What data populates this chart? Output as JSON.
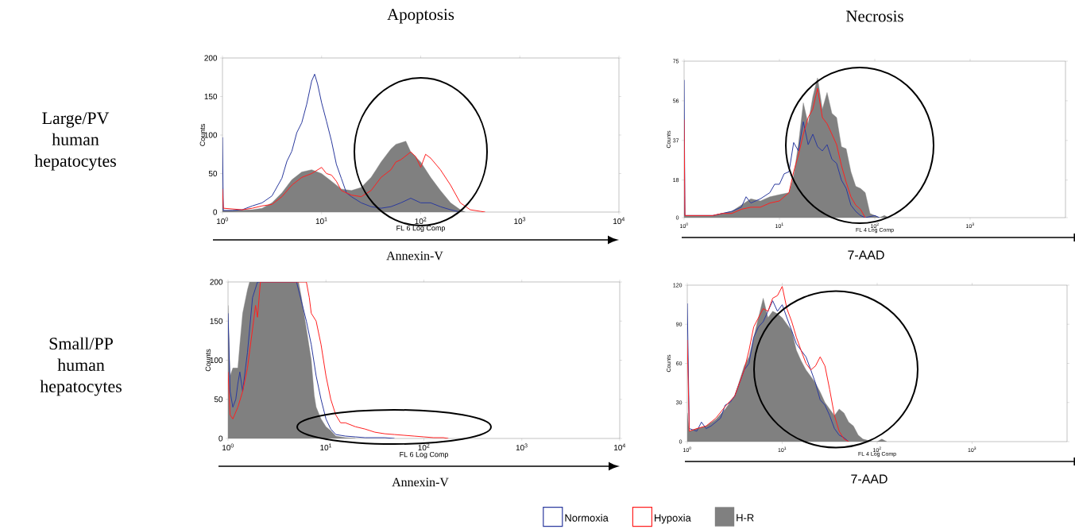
{
  "chart_data": [
    {
      "type": "area",
      "title": "Apoptosis",
      "xlabel": "FL 6 Log Comp",
      "ylabel": "Counts",
      "log": "x",
      "xlim": [
        1,
        10000
      ],
      "ylim": [
        0,
        200
      ],
      "xticks": [
        {
          "value": 1,
          "label": "10$^{0}$"
        },
        {
          "value": 10,
          "label": "10$^{1}$"
        },
        {
          "value": 100,
          "label": "10$^{2}$"
        },
        {
          "value": 1000,
          "label": "10$^{3}$"
        },
        {
          "value": 10000,
          "label": "10$^{4}$"
        }
      ],
      "yticks": [
        0,
        50,
        100,
        150,
        200
      ],
      "annotations": [
        "Large/PV human hepatocytes",
        "Annexin-V"
      ],
      "series": [
        {
          "type": "line",
          "color": "#2b3a9e",
          "x": [
            1,
            1.02,
            1.26,
            1.58,
            2,
            2.51,
            3.16,
            3.98,
            4.47,
            5.01,
            5.62,
            6.31,
            7.08,
            7.94,
            8.51,
            9.12,
            10,
            11.2,
            12.6,
            14.1,
            15.8,
            17.8,
            20,
            25.1,
            31.6,
            39.8,
            50.1,
            63.1,
            79.4,
            100,
            126,
            158,
            200,
            251
          ],
          "values": [
            97,
            2,
            2,
            3,
            8,
            12,
            21,
            44,
            66,
            79,
            103,
            116,
            140,
            170,
            179,
            166,
            142,
            118,
            92,
            62,
            44,
            25,
            20,
            12,
            7,
            5,
            7,
            12,
            18,
            12,
            12,
            7,
            3,
            0
          ]
        },
        {
          "type": "line",
          "color": "#ff2020",
          "x": [
            1,
            1.02,
            1.58,
            2,
            2.51,
            3.16,
            3.98,
            5.01,
            6.31,
            7.94,
            10,
            11.2,
            12.6,
            14.1,
            15.8,
            20,
            25.1,
            31.6,
            39.8,
            50.1,
            56.2,
            63.1,
            79.4,
            89.1,
            100,
            112,
            126,
            158,
            200,
            251,
            316,
            398,
            447
          ],
          "values": [
            30,
            5,
            3,
            5,
            8,
            10,
            20,
            35,
            45,
            50,
            58,
            50,
            48,
            40,
            28,
            22,
            20,
            28,
            45,
            55,
            65,
            68,
            78,
            72,
            58,
            75,
            70,
            55,
            35,
            12,
            3,
            1,
            0
          ]
        },
        {
          "color": "#808080",
          "x": [
            1,
            1.02,
            2,
            2.51,
            3.16,
            3.98,
            5.01,
            6.31,
            7.94,
            10,
            12.6,
            15.8,
            20,
            25.1,
            31.6,
            35.5,
            39.8,
            50.1,
            56.2,
            63.1,
            70.8,
            79.4,
            100,
            126,
            158,
            200,
            251,
            282
          ],
          "values": [
            32,
            2,
            3,
            5,
            12,
            25,
            42,
            52,
            55,
            50,
            40,
            30,
            28,
            32,
            45,
            55,
            65,
            82,
            88,
            90,
            92,
            78,
            65,
            45,
            28,
            12,
            3,
            0
          ]
        }
      ]
    },
    {
      "type": "area",
      "title": "Necrosis",
      "xlabel": "FL 4 Log Comp",
      "ylabel": "Counts",
      "log": "x",
      "xlim": [
        1,
        10000
      ],
      "ylim": [
        0,
        75
      ],
      "xticks": [
        {
          "value": 1,
          "label": "10$^{0}$"
        },
        {
          "value": 10,
          "label": "10$^{1}$"
        },
        {
          "value": 100,
          "label": "10$^{2}$"
        },
        {
          "value": 1000,
          "label": "10$^{3}$"
        }
      ],
      "yticks": [
        0,
        18,
        37,
        56,
        75
      ],
      "annotations": [
        "7-AAD"
      ],
      "series": [
        {
          "type": "line",
          "color": "#2b3a9e",
          "x": [
            1,
            1.02,
            1.26,
            1.58,
            2,
            2.51,
            3.16,
            3.98,
            4.47,
            5.01,
            6.31,
            7.94,
            8.91,
            10,
            11.2,
            12.6,
            14.1,
            15.8,
            17.8,
            20,
            22.4,
            25.1,
            28.2,
            31.6,
            35.5,
            39.8,
            44.7,
            50.1,
            56.2,
            63.1,
            70.8,
            79.4,
            100,
            112
          ],
          "values": [
            66,
            1,
            1,
            1,
            1,
            2,
            3,
            5,
            10,
            7,
            9,
            12,
            16,
            16,
            21,
            22,
            36,
            32,
            46,
            35,
            40,
            34,
            32,
            35,
            28,
            26,
            18,
            14,
            6,
            3,
            1,
            0,
            1,
            0
          ]
        },
        {
          "type": "line",
          "color": "#ff2020",
          "x": [
            1,
            1.02,
            1.26,
            2,
            2.51,
            3.16,
            3.98,
            5.01,
            6.31,
            7.94,
            10,
            12.6,
            14.1,
            15.8,
            17.8,
            20,
            22.4,
            25.1,
            28.2,
            31.6,
            35.5,
            39.8,
            44.7,
            50.1,
            56.2,
            63.1,
            70.8,
            79.4
          ],
          "values": [
            47,
            1,
            1,
            1,
            2,
            2,
            4,
            5,
            5,
            7,
            8,
            12,
            22,
            30,
            40,
            48,
            52,
            62,
            48,
            45,
            40,
            35,
            25,
            17,
            10,
            6,
            4,
            0
          ]
        },
        {
          "color": "#808080",
          "x": [
            1,
            1.02,
            1.26,
            2,
            3.16,
            3.98,
            5.01,
            6.31,
            7.94,
            10,
            12.6,
            14.1,
            15.8,
            17.8,
            20,
            22.4,
            25.1,
            28.2,
            31.6,
            35.5,
            39.8,
            44.7,
            50.1,
            56.2,
            63.1,
            70.8,
            79.4,
            89.1,
            100,
            112,
            126,
            141
          ],
          "values": [
            10,
            1,
            1,
            1,
            3,
            6,
            9,
            8,
            10,
            11,
            12,
            20,
            35,
            55,
            45,
            58,
            67,
            52,
            60,
            50,
            48,
            34,
            33,
            22,
            15,
            14,
            12,
            2,
            1,
            0,
            1,
            0
          ]
        }
      ]
    },
    {
      "type": "area",
      "xlabel": "FL 6 Log Comp",
      "ylabel": "Counts",
      "log": "x",
      "xlim": [
        1,
        10000
      ],
      "ylim": [
        0,
        200
      ],
      "xticks": [
        {
          "value": 1,
          "label": "10$^{0}$"
        },
        {
          "value": 10,
          "label": "10$^{1}$"
        },
        {
          "value": 100,
          "label": "10$^{2}$"
        },
        {
          "value": 1000,
          "label": "10$^{3}$"
        },
        {
          "value": 10000,
          "label": "10$^{4}$"
        }
      ],
      "yticks": [
        0,
        50,
        100,
        150,
        200
      ],
      "annotations": [
        "Small/PP human hepatocytes",
        "Annexin-V"
      ],
      "series": [
        {
          "type": "line",
          "color": "#2b3a9e",
          "x": [
            1,
            1.05,
            1.12,
            1.2,
            1.26,
            1.32,
            1.41,
            1.58,
            1.78,
            2,
            5.01,
            5.62,
            6.31,
            7.08,
            7.94,
            8.91,
            10,
            11.2,
            12.6,
            15.8,
            20,
            25.1,
            31.6,
            39.8,
            50.1
          ],
          "values": [
            160,
            60,
            40,
            50,
            70,
            85,
            60,
            110,
            180,
            200,
            200,
            175,
            150,
            120,
            80,
            50,
            25,
            12,
            5,
            3,
            2,
            1,
            1,
            1,
            0
          ]
        },
        {
          "type": "line",
          "color": "#ff2020",
          "x": [
            1,
            1.05,
            1.12,
            1.26,
            1.41,
            1.58,
            1.78,
            1.91,
            2,
            2.14,
            6.31,
            6.76,
            7.08,
            7.94,
            8.91,
            10,
            11.2,
            12.6,
            14.1,
            15.8,
            20,
            25.1,
            31.6,
            39.8,
            50.1,
            63.1,
            79.4,
            100,
            126,
            158,
            178
          ],
          "values": [
            85,
            30,
            25,
            40,
            60,
            90,
            140,
            170,
            155,
            200,
            200,
            180,
            160,
            150,
            120,
            80,
            50,
            30,
            20,
            20,
            15,
            12,
            8,
            6,
            5,
            4,
            3,
            2,
            1,
            1,
            0
          ]
        },
        {
          "color": "#808080",
          "x": [
            1,
            1.05,
            1.12,
            1.26,
            1.32,
            1.41,
            1.58,
            1.66,
            5.25,
            5.62,
            6.31,
            7.08,
            7.59,
            7.94,
            8.91,
            10,
            11.2,
            12.6,
            15.8,
            20
          ],
          "values": [
            170,
            80,
            90,
            90,
            120,
            160,
            190,
            200,
            200,
            180,
            140,
            100,
            55,
            40,
            25,
            15,
            10,
            3,
            1,
            0
          ]
        }
      ]
    },
    {
      "type": "area",
      "xlabel": "FL 4 Log Comp",
      "ylabel": "Counts",
      "log": "x",
      "xlim": [
        1,
        10000
      ],
      "ylim": [
        0,
        120
      ],
      "legend": "bottom",
      "xticks": [
        {
          "value": 1,
          "label": "10$^{0}$"
        },
        {
          "value": 10,
          "label": "10$^{1}$"
        },
        {
          "value": 100,
          "label": "10$^{2}$"
        },
        {
          "value": 1000,
          "label": "10$^{3}$"
        }
      ],
      "yticks": [
        0,
        30,
        60,
        90,
        120
      ],
      "annotations": [
        "7-AAD"
      ],
      "series": [
        {
          "name": "Normoxia",
          "type": "line",
          "color": "#2b3a9e",
          "x": [
            1,
            1.05,
            1.26,
            1.41,
            1.58,
            1.78,
            2,
            2.24,
            2.51,
            2.82,
            3.16,
            3.55,
            3.98,
            4.47,
            5.01,
            5.62,
            6.31,
            7.08,
            7.94,
            8.91,
            10,
            11.2,
            12.6,
            14.1,
            15.8,
            17.8,
            20,
            22.4,
            25.1,
            28.2,
            31.6,
            35.5,
            39.8,
            44.7,
            50.1
          ],
          "values": [
            106,
            10,
            8,
            15,
            10,
            12,
            15,
            18,
            28,
            30,
            35,
            45,
            55,
            60,
            80,
            88,
            92,
            100,
            108,
            100,
            105,
            95,
            85,
            75,
            70,
            65,
            55,
            45,
            32,
            28,
            20,
            10,
            5,
            3,
            0
          ]
        },
        {
          "name": "Hypoxia",
          "type": "line",
          "color": "#ff2020",
          "x": [
            1,
            1.05,
            1.26,
            1.58,
            2,
            2.51,
            3.16,
            3.98,
            4.47,
            5.01,
            5.62,
            6.31,
            7.08,
            7.94,
            8.91,
            10,
            11.2,
            12.6,
            14.1,
            15.8,
            17.8,
            20,
            22.4,
            25.1,
            28.2,
            31.6,
            35.5,
            39.8,
            44.7,
            50.1
          ],
          "values": [
            78,
            8,
            10,
            12,
            18,
            27,
            35,
            55,
            70,
            88,
            95,
            102,
            100,
            110,
            112,
            119,
            102,
            92,
            80,
            70,
            60,
            55,
            58,
            65,
            58,
            40,
            20,
            8,
            2,
            0
          ]
        },
        {
          "name": "H-R",
          "color": "#808080",
          "x": [
            1,
            1.05,
            1.26,
            1.58,
            2,
            2.51,
            3.16,
            3.98,
            4.47,
            5.01,
            5.62,
            6.31,
            7.08,
            7.94,
            8.91,
            10,
            11.2,
            12.6,
            14.1,
            15.8,
            17.8,
            20,
            22.4,
            25.1,
            28.2,
            31.6,
            35.5,
            39.8,
            44.7,
            50.1,
            56.2,
            63.1,
            70.8,
            79.4,
            89.1,
            100,
            112,
            126
          ],
          "values": [
            22,
            8,
            10,
            12,
            17,
            25,
            35,
            58,
            65,
            80,
            95,
            110,
            95,
            100,
            98,
            95,
            90,
            85,
            70,
            62,
            55,
            50,
            45,
            38,
            30,
            25,
            20,
            25,
            22,
            15,
            12,
            5,
            2,
            1,
            0,
            0,
            2,
            0
          ]
        }
      ]
    }
  ]
}
